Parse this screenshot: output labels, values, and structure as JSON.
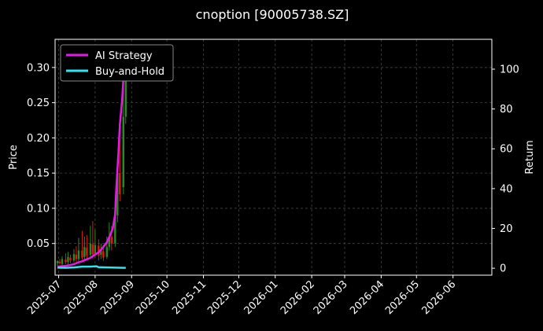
{
  "chart_data": {
    "type": "line",
    "title": "cnoption [90005738.SZ]",
    "ylabel": "Price",
    "y2label": "Return",
    "x_ticks": [
      "2025-07",
      "2025-08",
      "2025-09",
      "2025-10",
      "2025-11",
      "2025-12",
      "2026-01",
      "2026-02",
      "2026-03",
      "2026-04",
      "2026-05",
      "2026-06"
    ],
    "xlim": [
      "2025-06-28",
      "2026-07-04"
    ],
    "y_ticks": [
      "0.05",
      "0.10",
      "0.15",
      "0.20",
      "0.25",
      "0.30"
    ],
    "ylim": [
      0.005,
      0.34
    ],
    "y2_ticks": [
      "0",
      "20",
      "40",
      "60",
      "80",
      "100"
    ],
    "y2lim": [
      -3.5,
      115
    ],
    "grid": true,
    "legend_position": "top-left",
    "series": [
      {
        "name": "AI Strategy",
        "axis": "right",
        "color": "#e619e6",
        "points": [
          [
            "2025-06-30",
            0.8
          ],
          [
            "2025-07-03",
            1.0
          ],
          [
            "2025-07-07",
            1.2
          ],
          [
            "2025-07-10",
            1.5
          ],
          [
            "2025-07-14",
            2.0
          ],
          [
            "2025-07-17",
            2.8
          ],
          [
            "2025-07-21",
            3.5
          ],
          [
            "2025-07-24",
            4.3
          ],
          [
            "2025-07-28",
            5.2
          ],
          [
            "2025-07-31",
            6.5
          ],
          [
            "2025-08-04",
            8.0
          ],
          [
            "2025-08-07",
            10.0
          ],
          [
            "2025-08-11",
            13.0
          ],
          [
            "2025-08-14",
            17.0
          ],
          [
            "2025-08-16",
            20.0
          ],
          [
            "2025-08-18",
            27.0
          ],
          [
            "2025-08-19",
            40.0
          ],
          [
            "2025-08-20",
            50.0
          ],
          [
            "2025-08-21",
            60.0
          ],
          [
            "2025-08-22",
            72.0
          ],
          [
            "2025-08-24",
            85.0
          ],
          [
            "2025-08-25",
            95.0
          ],
          [
            "2025-08-26",
            103.0
          ],
          [
            "2025-08-27",
            106.0
          ]
        ]
      },
      {
        "name": "Buy-and-Hold",
        "axis": "right",
        "color": "#2ee6f0",
        "points": [
          [
            "2025-06-30",
            0.3
          ],
          [
            "2025-07-07",
            0.2
          ],
          [
            "2025-07-14",
            0.4
          ],
          [
            "2025-07-21",
            0.8
          ],
          [
            "2025-07-28",
            0.8
          ],
          [
            "2025-08-02",
            1.0
          ],
          [
            "2025-08-04",
            0.5
          ],
          [
            "2025-08-11",
            0.4
          ],
          [
            "2025-08-18",
            0.3
          ],
          [
            "2025-08-25",
            0.2
          ],
          [
            "2025-08-27",
            0.2
          ]
        ]
      }
    ],
    "candles": [
      [
        "2025-06-30",
        0.022,
        0.025,
        0.018,
        0.026,
        "up"
      ],
      [
        "2025-07-02",
        0.024,
        0.022,
        0.02,
        0.028,
        "down"
      ],
      [
        "2025-07-04",
        0.021,
        0.028,
        0.019,
        0.032,
        "up"
      ],
      [
        "2025-07-07",
        0.027,
        0.024,
        0.021,
        0.036,
        "down"
      ],
      [
        "2025-07-09",
        0.024,
        0.031,
        0.02,
        0.038,
        "up"
      ],
      [
        "2025-07-11",
        0.03,
        0.026,
        0.022,
        0.034,
        "down"
      ],
      [
        "2025-07-14",
        0.026,
        0.035,
        0.023,
        0.042,
        "up"
      ],
      [
        "2025-07-16",
        0.034,
        0.028,
        0.024,
        0.046,
        "down"
      ],
      [
        "2025-07-18",
        0.028,
        0.04,
        0.025,
        0.058,
        "up"
      ],
      [
        "2025-07-21",
        0.04,
        0.03,
        0.027,
        0.068,
        "down"
      ],
      [
        "2025-07-23",
        0.031,
        0.045,
        0.026,
        0.06,
        "up"
      ],
      [
        "2025-07-25",
        0.044,
        0.033,
        0.028,
        0.062,
        "down"
      ],
      [
        "2025-07-28",
        0.034,
        0.05,
        0.03,
        0.075,
        "up"
      ],
      [
        "2025-07-30",
        0.049,
        0.035,
        0.028,
        0.082,
        "down"
      ],
      [
        "2025-08-01",
        0.036,
        0.048,
        0.03,
        0.07,
        "up"
      ],
      [
        "2025-08-04",
        0.047,
        0.033,
        0.026,
        0.056,
        "down"
      ],
      [
        "2025-08-06",
        0.034,
        0.04,
        0.028,
        0.05,
        "up"
      ],
      [
        "2025-08-08",
        0.039,
        0.03,
        0.025,
        0.048,
        "down"
      ],
      [
        "2025-08-11",
        0.031,
        0.045,
        0.028,
        0.06,
        "up"
      ],
      [
        "2025-08-13",
        0.045,
        0.06,
        0.04,
        0.08,
        "up"
      ],
      [
        "2025-08-15",
        0.06,
        0.05,
        0.04,
        0.075,
        "down"
      ],
      [
        "2025-08-18",
        0.05,
        0.09,
        0.045,
        0.11,
        "up"
      ],
      [
        "2025-08-20",
        0.09,
        0.15,
        0.08,
        0.17,
        "up"
      ],
      [
        "2025-08-22",
        0.15,
        0.12,
        0.11,
        0.2,
        "down"
      ],
      [
        "2025-08-25",
        0.13,
        0.23,
        0.12,
        0.29,
        "up"
      ],
      [
        "2025-08-27",
        0.23,
        0.31,
        0.22,
        0.33,
        "up"
      ]
    ]
  }
}
